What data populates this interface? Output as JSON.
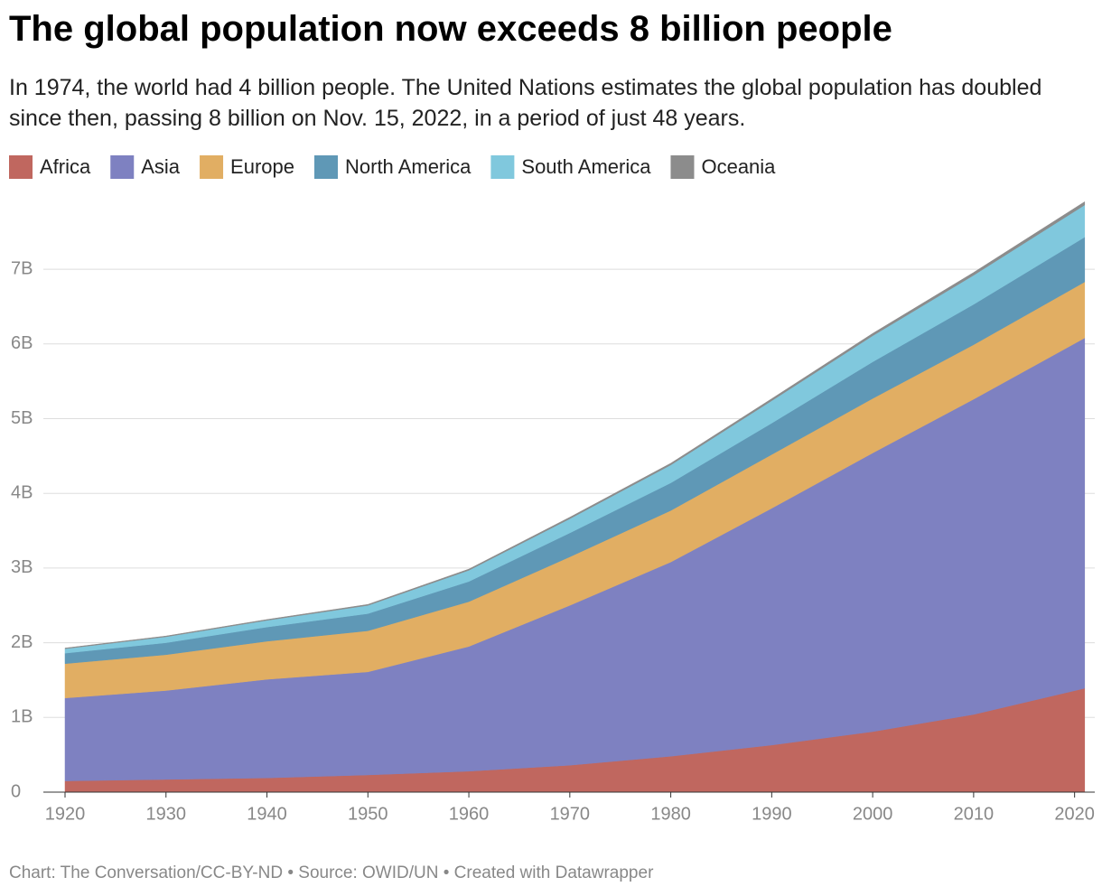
{
  "chart_data": {
    "type": "stacked_area",
    "title": "The global population now exceeds 8 billion people",
    "subtitle": "In 1974, the world had 4 billion people. The United Nations estimates the global population has doubled since then, passing 8 billion on Nov. 15, 2022, in a period of just 48 years.",
    "footer": "Chart: The Conversation/CC-BY-ND • Source: OWID/UN • Created with Datawrapper",
    "x": [
      1920,
      1930,
      1940,
      1950,
      1960,
      1970,
      1980,
      1990,
      2000,
      2010,
      2021
    ],
    "series": [
      {
        "name": "Africa",
        "color": "#c0675f",
        "values": [
          0.15,
          0.17,
          0.19,
          0.23,
          0.28,
          0.36,
          0.48,
          0.63,
          0.81,
          1.04,
          1.39
        ]
      },
      {
        "name": "Asia",
        "color": "#7e81c1",
        "values": [
          1.11,
          1.19,
          1.32,
          1.38,
          1.67,
          2.14,
          2.6,
          3.17,
          3.73,
          4.22,
          4.69
        ]
      },
      {
        "name": "Europe",
        "color": "#e1ae63",
        "values": [
          0.46,
          0.48,
          0.51,
          0.55,
          0.6,
          0.65,
          0.69,
          0.72,
          0.73,
          0.73,
          0.75
        ]
      },
      {
        "name": "North America",
        "color": "#5f98b6",
        "values": [
          0.14,
          0.16,
          0.19,
          0.23,
          0.27,
          0.32,
          0.37,
          0.42,
          0.49,
          0.54,
          0.6
        ]
      },
      {
        "name": "South America",
        "color": "#80c8dd",
        "values": [
          0.06,
          0.08,
          0.09,
          0.11,
          0.15,
          0.19,
          0.24,
          0.3,
          0.35,
          0.39,
          0.43
        ]
      },
      {
        "name": "Oceania",
        "color": "#8c8c8c",
        "values": [
          0.009,
          0.01,
          0.011,
          0.013,
          0.016,
          0.02,
          0.023,
          0.027,
          0.031,
          0.037,
          0.044
        ]
      }
    ],
    "xlim": [
      1920,
      2022
    ],
    "xticks": [
      1920,
      1930,
      1940,
      1950,
      1960,
      1970,
      1980,
      1990,
      2000,
      2010,
      2020
    ],
    "ylim": [
      0,
      8
    ],
    "yticks": [
      0,
      {
        "value": 1,
        "label": "1B"
      },
      {
        "value": 2,
        "label": "2B"
      },
      {
        "value": 3,
        "label": "3B"
      },
      {
        "value": 4,
        "label": "4B"
      },
      {
        "value": 5,
        "label": "5B"
      },
      {
        "value": 6,
        "label": "6B"
      },
      {
        "value": 7,
        "label": "7B"
      }
    ],
    "grid": true
  }
}
